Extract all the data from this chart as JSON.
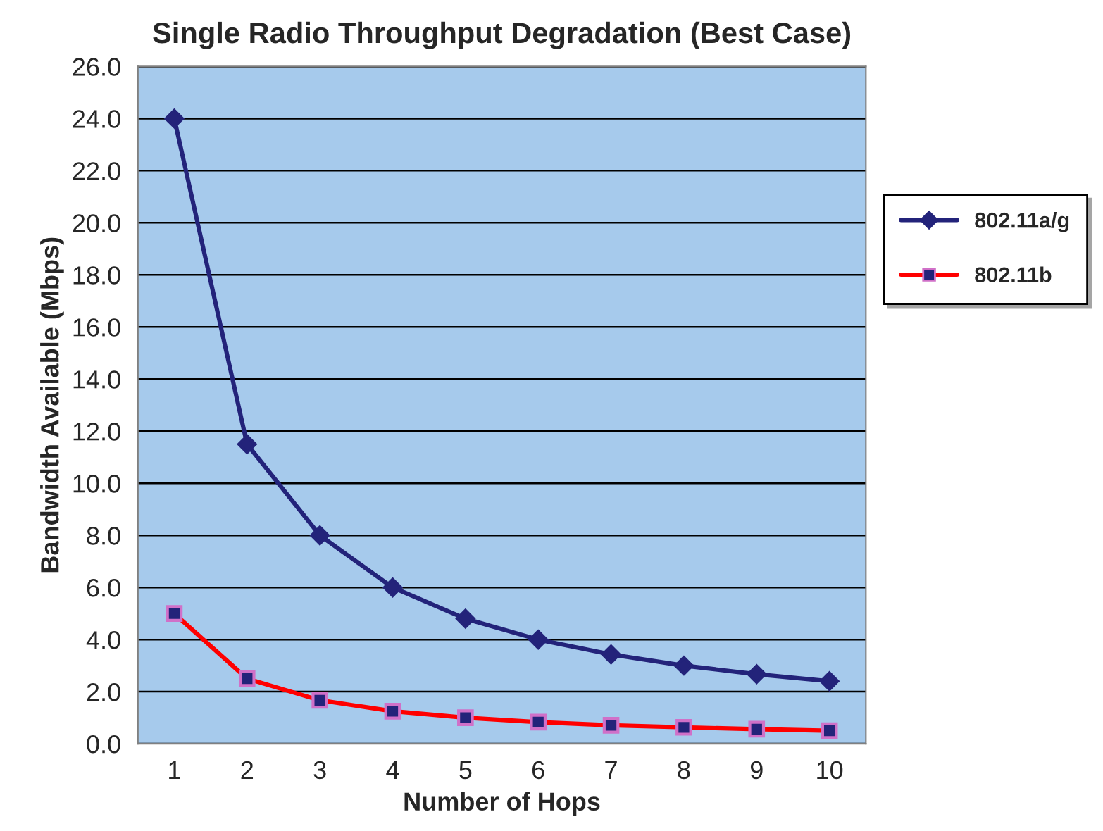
{
  "chart_data": {
    "type": "line",
    "title": "Single Radio Throughput Degradation (Best Case)",
    "xlabel": "Number of Hops",
    "ylabel": "Bandwidth Available (Mbps)",
    "categories": [
      "1",
      "2",
      "3",
      "4",
      "5",
      "6",
      "7",
      "8",
      "9",
      "10"
    ],
    "series": [
      {
        "name": "802.11a/g",
        "color": "#23237a",
        "marker": "diamond",
        "values": [
          24.0,
          11.5,
          8.0,
          6.0,
          4.8,
          4.0,
          3.43,
          3.0,
          2.67,
          2.4
        ]
      },
      {
        "name": "802.11b",
        "color": "#ff0000",
        "marker": "square",
        "values": [
          5.0,
          2.5,
          1.67,
          1.25,
          1.0,
          0.83,
          0.71,
          0.63,
          0.56,
          0.5
        ]
      }
    ],
    "ylim": [
      0,
      26
    ],
    "yticks": [
      {
        "value": 0,
        "label": "0.0"
      },
      {
        "value": 2,
        "label": "2.0"
      },
      {
        "value": 4,
        "label": "4.0"
      },
      {
        "value": 6,
        "label": "6.0"
      },
      {
        "value": 8,
        "label": "8.0"
      },
      {
        "value": 10,
        "label": "10.0"
      },
      {
        "value": 12,
        "label": "12.0"
      },
      {
        "value": 14,
        "label": "14.0"
      },
      {
        "value": 16,
        "label": "16.0"
      },
      {
        "value": 18,
        "label": "18.0"
      },
      {
        "value": 20,
        "label": "20.0"
      },
      {
        "value": 22,
        "label": "22.0"
      },
      {
        "value": 24,
        "label": "24.0"
      },
      {
        "value": 26,
        "label": "26.0"
      }
    ],
    "grid": "y",
    "legend": "right"
  }
}
